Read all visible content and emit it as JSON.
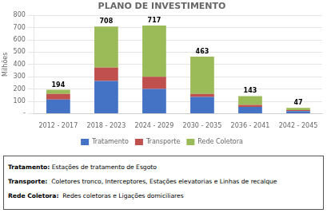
{
  "chart_data": {
    "type": "bar",
    "title": "PLANO DE INVESTIMENTO",
    "categories": [
      "2012 - 2017",
      "2018 - 2023",
      "2024 - 2029",
      "2030 - 2035",
      "2036 - 2041",
      "2042 - 2045"
    ],
    "series": [
      {
        "name": "Tratamento",
        "color": "#4472C4",
        "values": [
          115,
          265,
          200,
          135,
          55,
          20
        ]
      },
      {
        "name": "Transporte",
        "color": "#C0504D",
        "values": [
          45,
          110,
          100,
          25,
          15,
          8
        ]
      },
      {
        "name": "Rede Coletora",
        "color": "#9BBB59",
        "values": [
          34,
          333,
          417,
          303,
          73,
          19
        ]
      }
    ],
    "totals": [
      194,
      708,
      717,
      463,
      143,
      47
    ],
    "stacked": true,
    "ylabel": "Milhões",
    "ylim": [
      0,
      800
    ],
    "yticks": [
      {
        "value": 0,
        "label": "-"
      },
      100,
      200,
      300,
      400,
      500,
      600,
      700,
      800
    ],
    "grid": true,
    "legend": "bottom",
    "annotations": [
      "Tratamento: Estações de tratamento de Esgoto",
      "Transporte:  Coletores tronco, Interceptores, Estações elevatorias e Linhas de recalque",
      "Rede Coletora:  Redes coletoras e Ligações domiciliares"
    ]
  }
}
